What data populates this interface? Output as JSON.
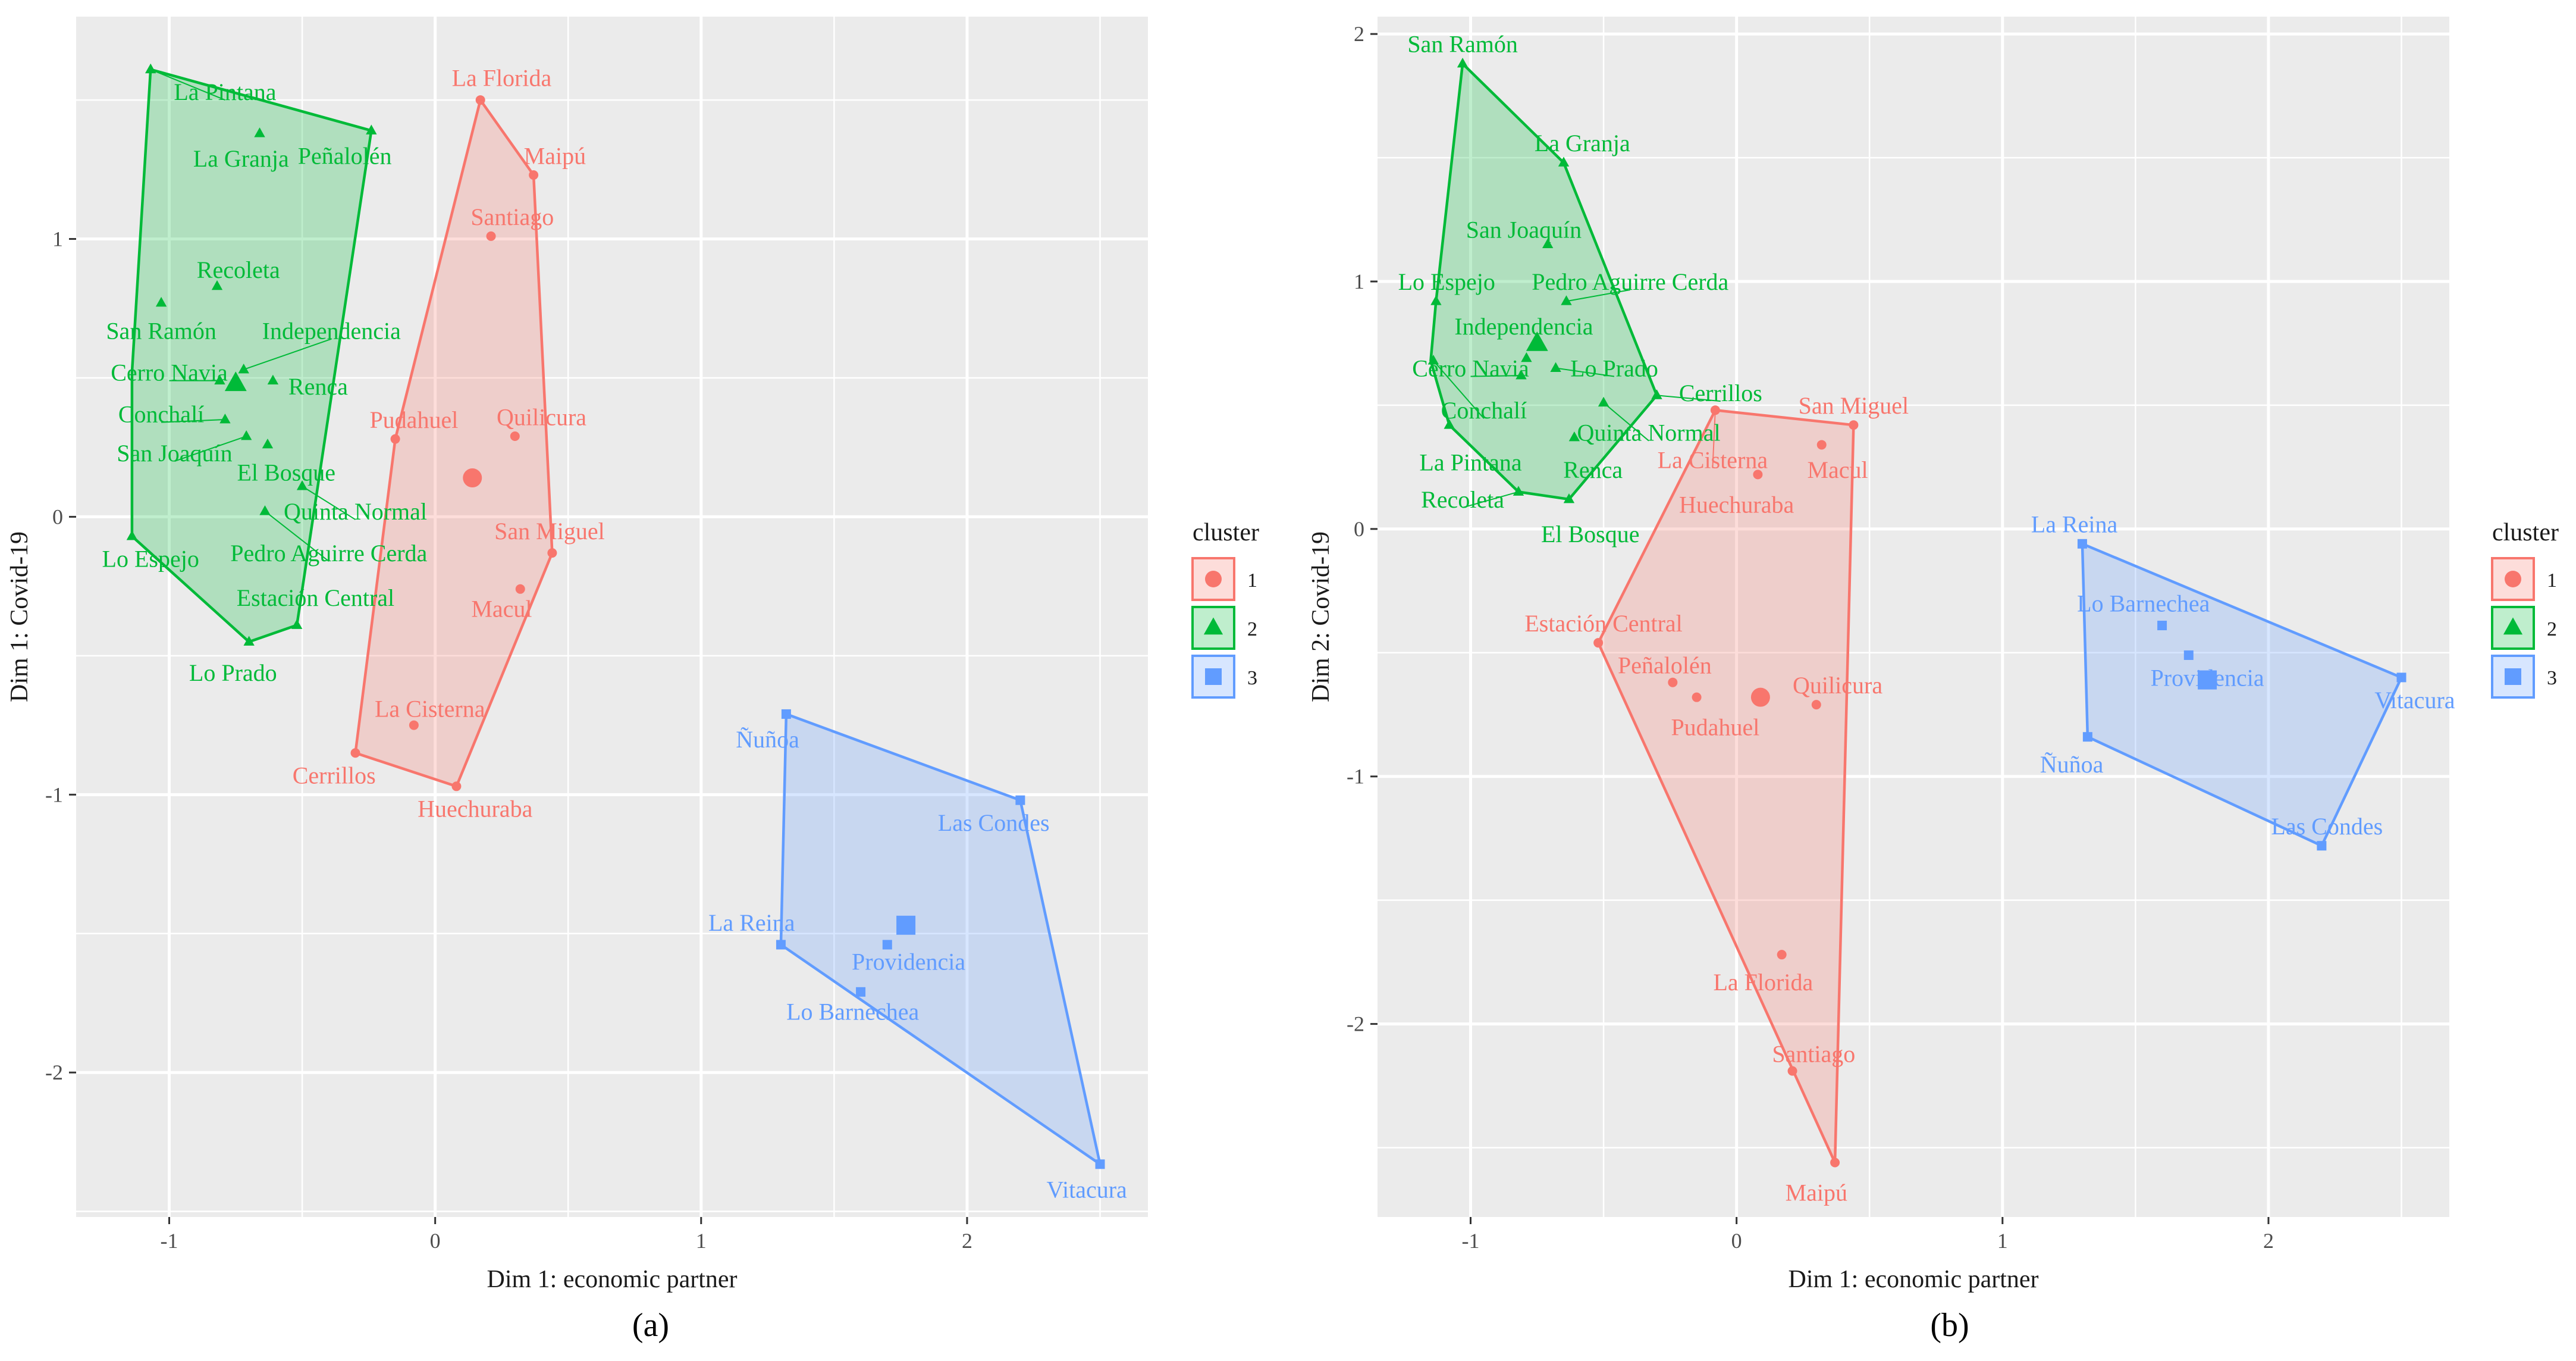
{
  "colors": {
    "c1": "#F8766D",
    "c2": "#00BA38",
    "c3": "#619CFF",
    "panel": "#EBEBEB",
    "grid": "#FFFFFF",
    "axis_text": "#4D4D4D",
    "title_text": "#1A1A1A"
  },
  "chart_data": [
    {
      "type": "scatter",
      "panel_label": "(a)",
      "xlabel": "Dim 1: economic partner",
      "ylabel": "Dim 1: Covid-19",
      "xlim": [
        -1.35,
        2.68
      ],
      "ylim": [
        -2.52,
        1.8
      ],
      "xticks": [
        -1,
        0,
        1,
        2
      ],
      "yticks": [
        -2,
        -1,
        0,
        1
      ],
      "xtick_labels": [
        "-1",
        "0",
        "1",
        "2"
      ],
      "ytick_labels": [
        "-2",
        "-1",
        "0",
        "1"
      ],
      "legend": {
        "title": "cluster",
        "position": "right",
        "items": [
          "1",
          "2",
          "3"
        ]
      },
      "series": [
        {
          "name": "1",
          "cluster": 1,
          "hull": [
            [
              -0.3,
              -0.85
            ],
            [
              0.08,
              -0.97
            ],
            [
              0.44,
              -0.13
            ],
            [
              0.37,
              1.23
            ],
            [
              0.17,
              1.5
            ],
            [
              -0.15,
              0.28
            ]
          ],
          "centroid": [
            0.14,
            0.14
          ],
          "points": [
            {
              "label": "La Florida",
              "x": 0.17,
              "y": 1.5,
              "lx": 0.25,
              "ly": 1.58
            },
            {
              "label": "Maipú",
              "x": 0.37,
              "y": 1.23,
              "lx": 0.45,
              "ly": 1.3
            },
            {
              "label": "Santiago",
              "x": 0.21,
              "y": 1.01,
              "lx": 0.29,
              "ly": 1.08
            },
            {
              "label": "Quilicura",
              "x": 0.3,
              "y": 0.29,
              "lx": 0.4,
              "ly": 0.36
            },
            {
              "label": "Pudahuel",
              "x": -0.15,
              "y": 0.28,
              "lx": -0.08,
              "ly": 0.35
            },
            {
              "label": "San Miguel",
              "x": 0.44,
              "y": -0.13,
              "lx": 0.43,
              "ly": -0.05
            },
            {
              "label": "Macul",
              "x": 0.32,
              "y": -0.26,
              "lx": 0.25,
              "ly": -0.33
            },
            {
              "label": "La Cisterna",
              "x": -0.08,
              "y": -0.75,
              "lx": -0.02,
              "ly": -0.69
            },
            {
              "label": "Cerrillos",
              "x": -0.3,
              "y": -0.85,
              "lx": -0.38,
              "ly": -0.93
            },
            {
              "label": "Huechuraba",
              "x": 0.08,
              "y": -0.97,
              "lx": 0.15,
              "ly": -1.05
            }
          ]
        },
        {
          "name": "2",
          "cluster": 2,
          "hull": [
            [
              -1.14,
              -0.07
            ],
            [
              -0.7,
              -0.45
            ],
            [
              -0.52,
              -0.39
            ],
            [
              -0.24,
              1.39
            ],
            [
              -1.07,
              1.61
            ],
            [
              -1.14,
              0.52
            ]
          ],
          "centroid": [
            -0.75,
            0.48
          ],
          "points": [
            {
              "label": "La Pintana",
              "x": -1.07,
              "y": 1.61,
              "lx": -0.79,
              "ly": 1.53
            },
            {
              "label": "La Granja",
              "x": -0.66,
              "y": 1.38,
              "lx": -0.73,
              "ly": 1.29
            },
            {
              "label": "Peñalolén",
              "x": -0.24,
              "y": 1.39,
              "lx": -0.34,
              "ly": 1.3
            },
            {
              "label": "Recoleta",
              "x": -0.82,
              "y": 0.83,
              "lx": -0.74,
              "ly": 0.89
            },
            {
              "label": "San Ramón",
              "x": -1.03,
              "y": 0.77,
              "lx": -1.03,
              "ly": 0.67
            },
            {
              "label": "Independencia",
              "x": -0.72,
              "y": 0.53,
              "lx": -0.39,
              "ly": 0.67
            },
            {
              "label": "Cerro Navia",
              "x": -0.81,
              "y": 0.49,
              "lx": -1.0,
              "ly": 0.52
            },
            {
              "label": "Renca",
              "x": -0.61,
              "y": 0.49,
              "lx": -0.44,
              "ly": 0.47
            },
            {
              "label": "Conchalí",
              "x": -0.79,
              "y": 0.35,
              "lx": -1.03,
              "ly": 0.37
            },
            {
              "label": "San Joaquín",
              "x": -0.71,
              "y": 0.29,
              "lx": -0.98,
              "ly": 0.23
            },
            {
              "label": "El Bosque",
              "x": -0.63,
              "y": 0.26,
              "lx": -0.56,
              "ly": 0.16
            },
            {
              "label": "Quinta Normal",
              "x": -0.5,
              "y": 0.11,
              "lx": -0.3,
              "ly": 0.02
            },
            {
              "label": "Pedro Aguirre Cerda",
              "x": -0.64,
              "y": 0.02,
              "lx": -0.4,
              "ly": -0.13
            },
            {
              "label": "Lo Espejo",
              "x": -1.14,
              "y": -0.07,
              "lx": -1.07,
              "ly": -0.15
            },
            {
              "label": "Estación Central",
              "x": -0.52,
              "y": -0.39,
              "lx": -0.45,
              "ly": -0.29
            },
            {
              "label": "Lo Prado",
              "x": -0.7,
              "y": -0.45,
              "lx": -0.76,
              "ly": -0.56
            }
          ]
        },
        {
          "name": "3",
          "cluster": 3,
          "hull": [
            [
              1.32,
              -0.71
            ],
            [
              2.2,
              -1.02
            ],
            [
              2.5,
              -2.33
            ],
            [
              1.3,
              -1.54
            ]
          ],
          "centroid": [
            1.77,
            -1.47
          ],
          "points": [
            {
              "label": "Ñuñoa",
              "x": 1.32,
              "y": -0.71,
              "lx": 1.25,
              "ly": -0.8
            },
            {
              "label": "Las Condes",
              "x": 2.2,
              "y": -1.02,
              "lx": 2.1,
              "ly": -1.1
            },
            {
              "label": "La Reina",
              "x": 1.3,
              "y": -1.54,
              "lx": 1.19,
              "ly": -1.46
            },
            {
              "label": "Providencia",
              "x": 1.7,
              "y": -1.54,
              "lx": 1.78,
              "ly": -1.6
            },
            {
              "label": "Lo Barnechea",
              "x": 1.6,
              "y": -1.71,
              "lx": 1.57,
              "ly": -1.78
            },
            {
              "label": "Vitacura",
              "x": 2.5,
              "y": -2.33,
              "lx": 2.45,
              "ly": -2.42
            }
          ]
        }
      ]
    },
    {
      "type": "scatter",
      "panel_label": "(b)",
      "xlabel": "Dim 1: economic partner",
      "ylabel": "Dim 2: Covid-19",
      "xlim": [
        -1.35,
        2.68
      ],
      "ylim": [
        -2.78,
        2.07
      ],
      "xticks": [
        -1,
        0,
        1,
        2
      ],
      "yticks": [
        -2,
        -1,
        0,
        1,
        2
      ],
      "xtick_labels": [
        "-1",
        "0",
        "1",
        "2"
      ],
      "ytick_labels": [
        "-2",
        "-1",
        "0",
        "1",
        "2"
      ],
      "legend": {
        "title": "cluster",
        "position": "right",
        "items": [
          "1",
          "2",
          "3"
        ]
      },
      "series": [
        {
          "name": "1",
          "cluster": 1,
          "hull": [
            [
              -0.08,
              0.48
            ],
            [
              0.44,
              0.42
            ],
            [
              0.37,
              -2.56
            ],
            [
              -0.52,
              -0.46
            ]
          ],
          "centroid": [
            0.09,
            -0.68
          ],
          "points": [
            {
              "label": "San Miguel",
              "x": 0.44,
              "y": 0.42,
              "lx": 0.44,
              "ly": 0.5
            },
            {
              "label": "Macul",
              "x": 0.32,
              "y": 0.34,
              "lx": 0.38,
              "ly": 0.24
            },
            {
              "label": "La Cisterna",
              "x": -0.08,
              "y": 0.48,
              "lx": -0.09,
              "ly": 0.28
            },
            {
              "label": "Huechuraba",
              "x": 0.08,
              "y": 0.22,
              "lx": 0.0,
              "ly": 0.1
            },
            {
              "label": "Estación Central",
              "x": -0.52,
              "y": -0.46,
              "lx": -0.5,
              "ly": -0.38
            },
            {
              "label": "Peñalolén",
              "x": -0.24,
              "y": -0.62,
              "lx": -0.27,
              "ly": -0.55
            },
            {
              "label": "Pudahuel",
              "x": -0.15,
              "y": -0.68,
              "lx": -0.08,
              "ly": -0.8
            },
            {
              "label": "Quilicura",
              "x": 0.3,
              "y": -0.71,
              "lx": 0.38,
              "ly": -0.63
            },
            {
              "label": "La Florida",
              "x": 0.17,
              "y": -1.72,
              "lx": 0.1,
              "ly": -1.83
            },
            {
              "label": "Santiago",
              "x": 0.21,
              "y": -2.19,
              "lx": 0.29,
              "ly": -2.12
            },
            {
              "label": "Maipú",
              "x": 0.37,
              "y": -2.56,
              "lx": 0.3,
              "ly": -2.68
            }
          ]
        },
        {
          "name": "2",
          "cluster": 2,
          "hull": [
            [
              -1.03,
              1.88
            ],
            [
              -0.65,
              1.48
            ],
            [
              -0.3,
              0.54
            ],
            [
              -0.63,
              0.12
            ],
            [
              -0.82,
              0.15
            ],
            [
              -1.08,
              0.42
            ],
            [
              -1.15,
              0.68
            ],
            [
              -1.13,
              0.92
            ]
          ],
          "centroid": [
            -0.75,
            0.75
          ],
          "points": [
            {
              "label": "San Ramón",
              "x": -1.03,
              "y": 1.88,
              "lx": -1.03,
              "ly": 1.96
            },
            {
              "label": "La Granja",
              "x": -0.65,
              "y": 1.48,
              "lx": -0.58,
              "ly": 1.56
            },
            {
              "label": "San Joaquín",
              "x": -0.71,
              "y": 1.15,
              "lx": -0.8,
              "ly": 1.21
            },
            {
              "label": "Lo Espejo",
              "x": -1.13,
              "y": 0.92,
              "lx": -1.09,
              "ly": 1.0
            },
            {
              "label": "Pedro Aguirre Cerda",
              "x": -0.64,
              "y": 0.92,
              "lx": -0.4,
              "ly": 1.0
            },
            {
              "label": "Independencia",
              "x": -0.79,
              "y": 0.69,
              "lx": -0.8,
              "ly": 0.82
            },
            {
              "label": "Cerro Navia",
              "x": -0.81,
              "y": 0.62,
              "lx": -1.0,
              "ly": 0.65
            },
            {
              "label": "Lo Prado",
              "x": -0.68,
              "y": 0.65,
              "lx": -0.46,
              "ly": 0.65
            },
            {
              "label": "Conchalí",
              "x": -1.14,
              "y": 0.68,
              "lx": -0.95,
              "ly": 0.48
            },
            {
              "label": "Cerrillos",
              "x": -0.3,
              "y": 0.54,
              "lx": -0.06,
              "ly": 0.55
            },
            {
              "label": "Quinta Normal",
              "x": -0.5,
              "y": 0.51,
              "lx": -0.33,
              "ly": 0.39
            },
            {
              "label": "Renca",
              "x": -0.61,
              "y": 0.37,
              "lx": -0.54,
              "ly": 0.24
            },
            {
              "label": "La Pintana",
              "x": -1.08,
              "y": 0.42,
              "lx": -1.0,
              "ly": 0.27
            },
            {
              "label": "Recoleta",
              "x": -0.82,
              "y": 0.15,
              "lx": -1.03,
              "ly": 0.12
            },
            {
              "label": "El Bosque",
              "x": -0.63,
              "y": 0.12,
              "lx": -0.55,
              "ly": -0.02
            }
          ]
        },
        {
          "name": "3",
          "cluster": 3,
          "hull": [
            [
              1.3,
              -0.06
            ],
            [
              2.5,
              -0.6
            ],
            [
              2.2,
              -1.28
            ],
            [
              1.32,
              -0.84
            ]
          ],
          "centroid": [
            1.77,
            -0.61
          ],
          "points": [
            {
              "label": "La Reina",
              "x": 1.3,
              "y": -0.06,
              "lx": 1.27,
              "ly": 0.02
            },
            {
              "label": "Lo Barnechea",
              "x": 1.6,
              "y": -0.39,
              "lx": 1.53,
              "ly": -0.3
            },
            {
              "label": "Providencia",
              "x": 1.7,
              "y": -0.51,
              "lx": 1.77,
              "ly": -0.6
            },
            {
              "label": "Vitacura",
              "x": 2.5,
              "y": -0.6,
              "lx": 2.55,
              "ly": -0.69
            },
            {
              "label": "Ñuñoa",
              "x": 1.32,
              "y": -0.84,
              "lx": 1.26,
              "ly": -0.95
            },
            {
              "label": "Las Condes",
              "x": 2.2,
              "y": -1.28,
              "lx": 2.22,
              "ly": -1.2
            }
          ]
        }
      ]
    }
  ]
}
